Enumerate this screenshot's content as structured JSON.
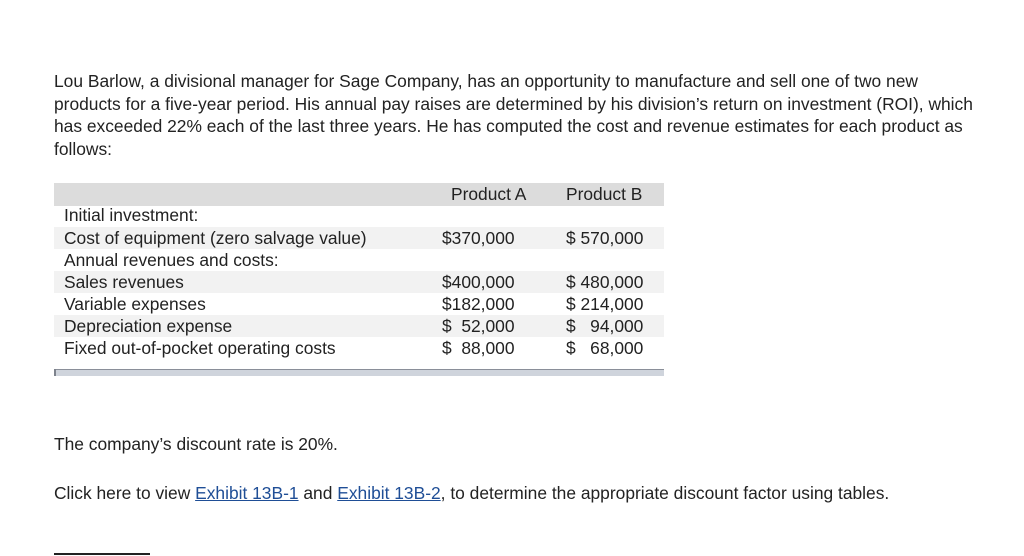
{
  "intro": "Lou Barlow, a divisional manager for Sage Company, has an opportunity to manufacture and sell one of two new products for a five-year period. His annual pay raises are determined by his division’s return on investment (ROI), which has exceeded 22% each of the last three years. He has computed the cost and revenue estimates for each product as follows:",
  "table": {
    "headers": [
      "Product A",
      "Product B"
    ],
    "rows": [
      {
        "label": "Initial investment:",
        "a": "",
        "b": ""
      },
      {
        "label": "Cost of equipment (zero salvage value)",
        "a": "$370,000",
        "b": "$ 570,000"
      },
      {
        "label": "Annual revenues and costs:",
        "a": "",
        "b": ""
      },
      {
        "label": "Sales revenues",
        "a": "$400,000",
        "b": "$ 480,000"
      },
      {
        "label": "Variable expenses",
        "a": "$182,000",
        "b": "$ 214,000"
      },
      {
        "label": "Depreciation expense",
        "a": "$  52,000",
        "b": "$   94,000"
      },
      {
        "label": "Fixed out-of-pocket operating costs",
        "a": "$  88,000",
        "b": "$   68,000"
      }
    ]
  },
  "discount_text": "The company’s discount rate is 20%.",
  "exhibit": {
    "prefix": "Click here to view ",
    "link1": "Exhibit 13B-1",
    "middle": " and ",
    "link2": "Exhibit 13B-2",
    "suffix": ", to determine the appropriate discount factor using tables."
  }
}
